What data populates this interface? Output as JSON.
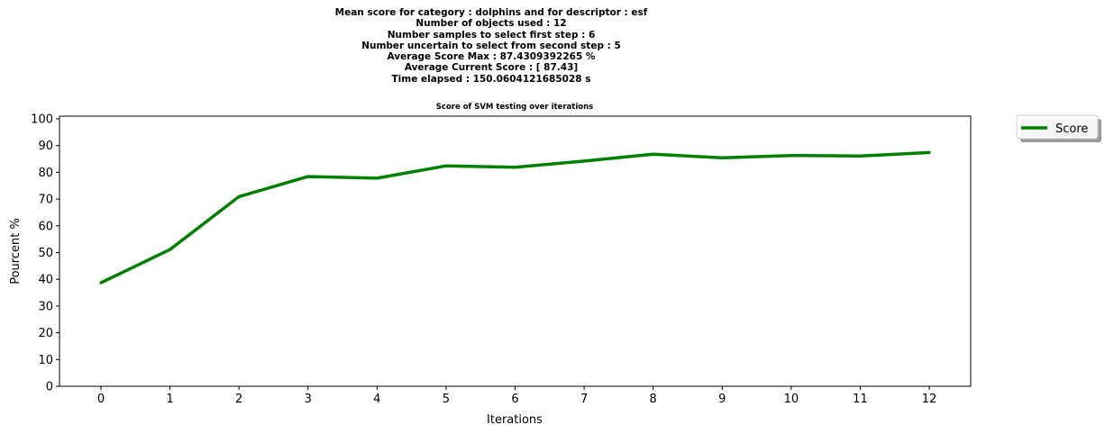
{
  "figure_header": [
    "Mean score for category : dolphins and for descriptor : esf",
    "Number of objects used : 12",
    "Number samples to select first step  : 6",
    "Number uncertain to select from second step  : 5",
    "Average Score Max : 87.4309392265 %",
    "Average Current Score : [ 87.43]",
    "Time elapsed : 150.0604121685028 s"
  ],
  "chart_data": {
    "type": "line",
    "title": "Score of SVM testing over iterations",
    "xlabel": "Iterations",
    "ylabel": "Pourcent %",
    "x": [
      0,
      1,
      2,
      3,
      4,
      5,
      6,
      7,
      8,
      9,
      10,
      11,
      12
    ],
    "series": [
      {
        "name": "Score",
        "color": "#008000",
        "values": [
          38.7,
          51.1,
          70.9,
          78.4,
          77.8,
          82.4,
          81.9,
          84.2,
          86.8,
          85.4,
          86.3,
          86.1,
          87.4
        ]
      }
    ],
    "xlim": [
      -0.6,
      12.6
    ],
    "ylim": [
      0,
      101
    ],
    "xticks": [
      "0",
      "1",
      "2",
      "3",
      "4",
      "5",
      "6",
      "7",
      "8",
      "9",
      "10",
      "11",
      "12"
    ],
    "yticks": [
      "0",
      "10",
      "20",
      "30",
      "40",
      "50",
      "60",
      "70",
      "80",
      "90",
      "100"
    ],
    "grid": false,
    "legend": "outside-top-right"
  }
}
